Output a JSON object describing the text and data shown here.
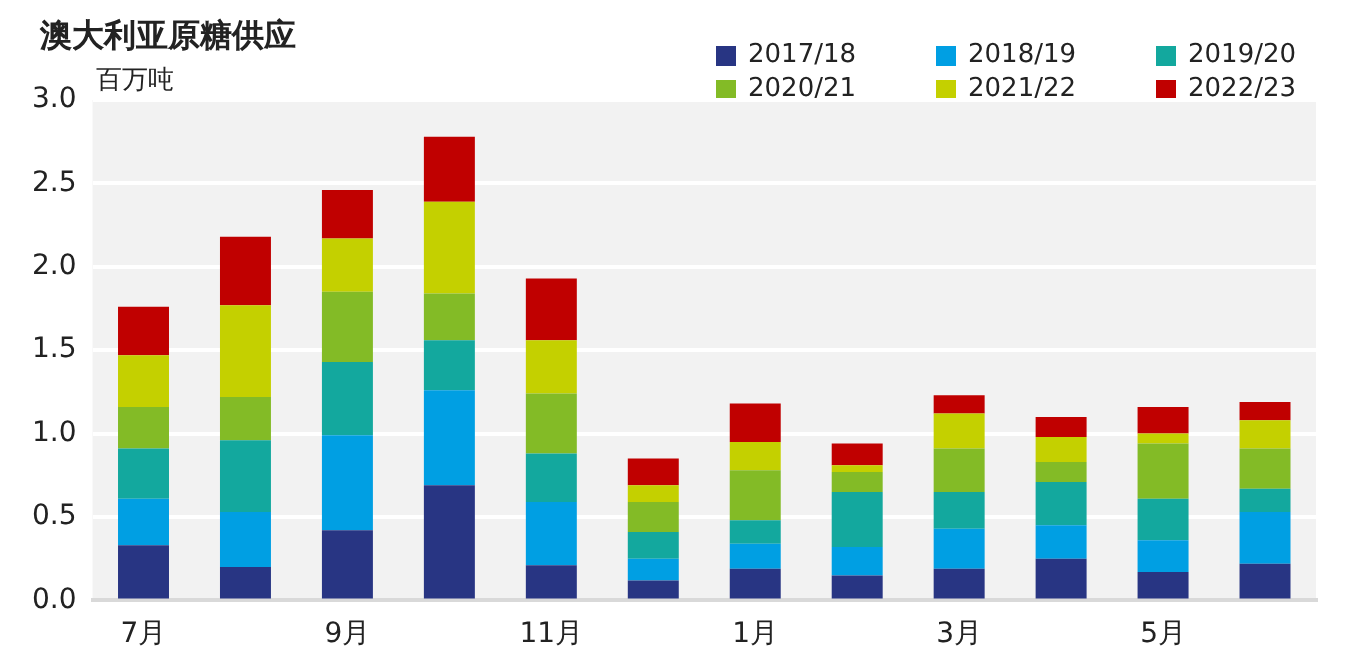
{
  "chart_data": {
    "type": "bar",
    "title": "澳大利亚原糖供应",
    "ylabel": "百万吨",
    "stacked": true,
    "grid": "y",
    "legend": "top right",
    "categories": [
      "7月",
      null,
      "9月",
      null,
      "11月",
      null,
      "1月",
      null,
      "3月",
      null,
      "5月",
      null
    ],
    "ylim": [
      0,
      3
    ],
    "yticks": [
      {
        "value": 0,
        "label": "0.0"
      },
      {
        "value": 0.5,
        "label": "0.5"
      },
      {
        "value": 1,
        "label": "1.0"
      },
      {
        "value": 1.5,
        "label": "1.5"
      },
      {
        "value": 2,
        "label": "2.0"
      },
      {
        "value": 2.5,
        "label": "2.5"
      },
      {
        "value": 3,
        "label": "3.0"
      }
    ],
    "series": [
      {
        "name": "2017/18",
        "color": "#283583",
        "values": [
          0.33,
          0.2,
          0.42,
          0.69,
          0.21,
          0.12,
          0.19,
          0.15,
          0.19,
          0.25,
          0.17,
          0.22
        ]
      },
      {
        "name": "2018/19",
        "color": "#009fe3",
        "values": [
          0.28,
          0.33,
          0.57,
          0.57,
          0.38,
          0.13,
          0.15,
          0.17,
          0.24,
          0.2,
          0.19,
          0.31
        ]
      },
      {
        "name": "2019/20",
        "color": "#13a89e",
        "values": [
          0.3,
          0.43,
          0.44,
          0.3,
          0.29,
          0.16,
          0.14,
          0.33,
          0.22,
          0.26,
          0.25,
          0.14
        ]
      },
      {
        "name": "2020/21",
        "color": "#83bb26",
        "values": [
          0.25,
          0.26,
          0.42,
          0.28,
          0.36,
          0.18,
          0.3,
          0.12,
          0.26,
          0.12,
          0.33,
          0.24
        ]
      },
      {
        "name": "2021/22",
        "color": "#c4d000",
        "values": [
          0.31,
          0.55,
          0.32,
          0.55,
          0.32,
          0.1,
          0.17,
          0.04,
          0.21,
          0.15,
          0.06,
          0.17
        ]
      },
      {
        "name": "2022/23",
        "color": "#c00000",
        "values": [
          0.29,
          0.41,
          0.29,
          0.39,
          0.37,
          0.16,
          0.23,
          0.13,
          0.11,
          0.12,
          0.16,
          0.11
        ]
      }
    ]
  }
}
